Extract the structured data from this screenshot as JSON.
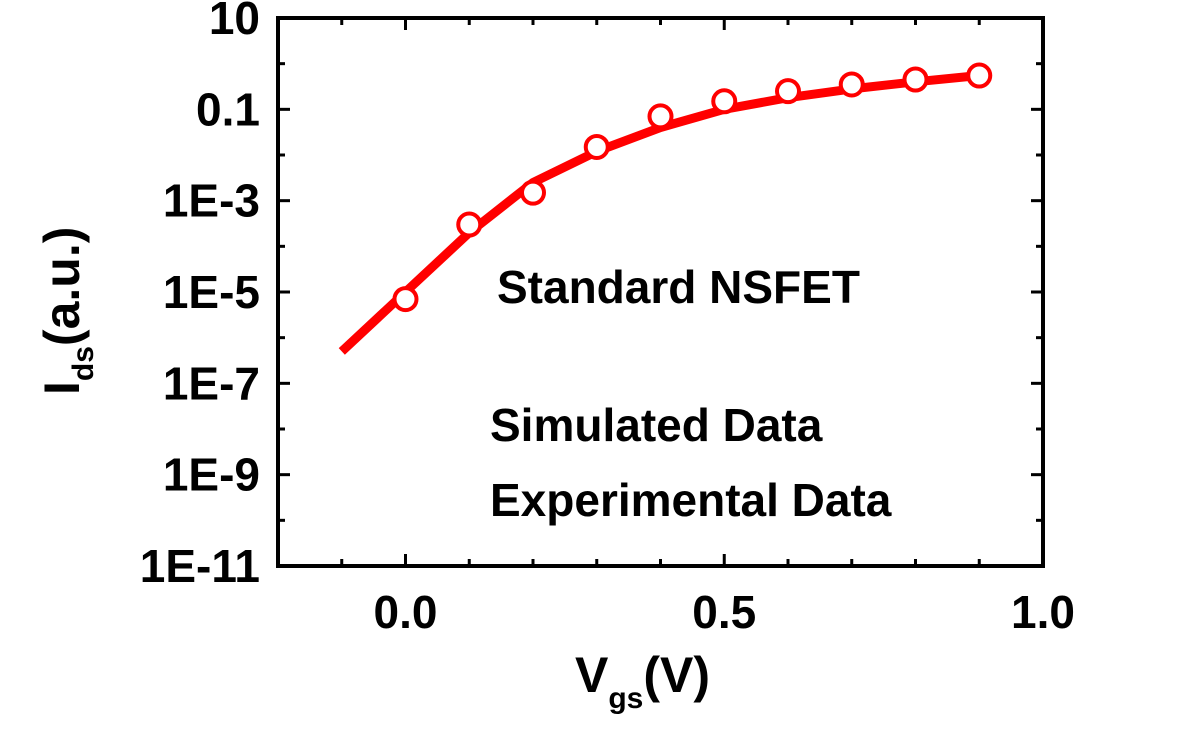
{
  "chart_data": {
    "type": "line",
    "xlabel": {
      "main": "V",
      "sub": "gs",
      "tail": "(V)"
    },
    "ylabel": {
      "main": "I",
      "sub": "ds",
      "tail": "(a.u.)"
    },
    "xlim": [
      -0.2,
      1.0
    ],
    "ylim_log10": [
      -11,
      1
    ],
    "yscale": "log",
    "grid": false,
    "x_ticks": [
      {
        "value": 0.0,
        "label": "0.0"
      },
      {
        "value": 0.5,
        "label": "0.5"
      },
      {
        "value": 1.0,
        "label": "1.0"
      }
    ],
    "y_ticks": [
      {
        "exp": 1,
        "label": "10"
      },
      {
        "exp": -1,
        "label": "0.1"
      },
      {
        "exp": -3,
        "label": "1E-3"
      },
      {
        "exp": -5,
        "label": "1E-5"
      },
      {
        "exp": -7,
        "label": "1E-7"
      },
      {
        "exp": -9,
        "label": "1E-9"
      },
      {
        "exp": -11,
        "label": "1E-11"
      }
    ],
    "annotations": {
      "device": "Standard NSFET",
      "legend_simulated": "Simulated Data",
      "legend_experimental": "Experimental Data"
    },
    "series": [
      {
        "kind": "line",
        "color": "#ff0000",
        "x": [
          -0.1,
          0.0,
          0.1,
          0.2,
          0.3,
          0.4,
          0.5,
          0.6,
          0.7,
          0.8,
          0.9
        ],
        "y": [
          5e-07,
          1e-05,
          0.0002,
          0.0025,
          0.012,
          0.04,
          0.1,
          0.18,
          0.28,
          0.4,
          0.55
        ]
      },
      {
        "kind": "scatter",
        "color": "#ff0000",
        "x": [
          0.0,
          0.1,
          0.2,
          0.3,
          0.4,
          0.5,
          0.6,
          0.7,
          0.8,
          0.9
        ],
        "y": [
          7e-06,
          0.0003,
          0.0015,
          0.015,
          0.07,
          0.15,
          0.25,
          0.35,
          0.45,
          0.55
        ]
      }
    ]
  }
}
